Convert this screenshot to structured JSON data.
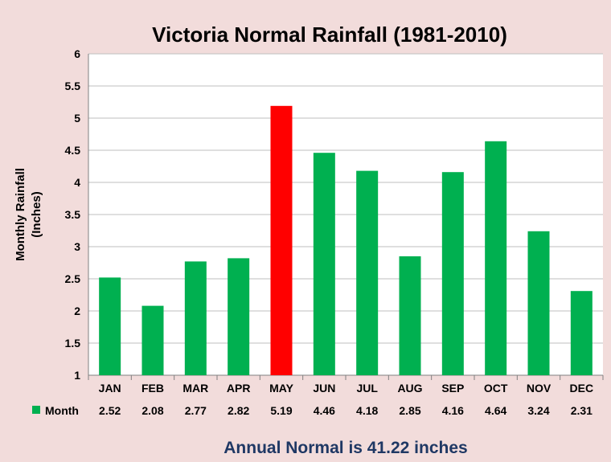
{
  "chart_data": {
    "type": "bar",
    "title": "Victoria Normal Rainfall (1981-2010)",
    "ylabel_lines": [
      "Monthly Rainfall",
      "(Inches)"
    ],
    "xlabel": "",
    "ylim": [
      1,
      6
    ],
    "yticks": [
      "1",
      "1.5",
      "2",
      "2.5",
      "3",
      "3.5",
      "4",
      "4.5",
      "5",
      "5.5",
      "6"
    ],
    "grid": true,
    "categories": [
      "JAN",
      "FEB",
      "MAR",
      "APR",
      "MAY",
      "JUN",
      "JUL",
      "AUG",
      "SEP",
      "OCT",
      "NOV",
      "DEC"
    ],
    "series": [
      {
        "name": "Month",
        "values": [
          2.52,
          2.08,
          2.77,
          2.82,
          5.19,
          4.46,
          4.18,
          2.85,
          4.16,
          4.64,
          3.24,
          2.31
        ],
        "value_labels": [
          "2.52",
          "2.08",
          "2.77",
          "2.82",
          "5.19",
          "4.46",
          "4.18",
          "2.85",
          "4.16",
          "4.64",
          "3.24",
          "2.31"
        ]
      }
    ],
    "bar_color": "#00b050",
    "highlight_color": "#ff0000",
    "highlight_category": "MAY",
    "legend": "data table, bottom-left"
  },
  "footer_text": "Annual Normal is 41.22 inches",
  "colors": {
    "background": "#f2dcdb",
    "plot_background": "#ffffff",
    "gridline": "#bfbfbf",
    "footer_text": "#1f3864"
  }
}
